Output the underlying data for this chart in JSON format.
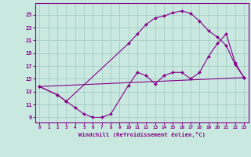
{
  "xlabel": "Windchill (Refroidissement éolien,°C)",
  "bg_color": "#c8e8e0",
  "grid_color": "#a0c8c0",
  "line_color": "#880088",
  "xlim": [
    -0.5,
    23.5
  ],
  "ylim": [
    8.2,
    26.8
  ],
  "xticks": [
    0,
    1,
    2,
    3,
    4,
    5,
    6,
    7,
    8,
    9,
    10,
    11,
    12,
    13,
    14,
    15,
    16,
    17,
    18,
    19,
    20,
    21,
    22,
    23
  ],
  "yticks": [
    9,
    11,
    13,
    15,
    17,
    19,
    21,
    23,
    25
  ],
  "line1_x": [
    0,
    23
  ],
  "line1_y": [
    13.8,
    15.2
  ],
  "line2_x": [
    0,
    2,
    3,
    4,
    5,
    6,
    7,
    8,
    10,
    11,
    12,
    13,
    14,
    15,
    16,
    17,
    18,
    19,
    20,
    21,
    22,
    23
  ],
  "line2_y": [
    13.8,
    12.5,
    11.5,
    10.5,
    9.5,
    9.0,
    9.0,
    9.5,
    14.0,
    16.0,
    15.5,
    14.2,
    15.5,
    16.0,
    16.0,
    15.0,
    16.0,
    18.5,
    20.5,
    22.0,
    17.5,
    15.2
  ],
  "line3_x": [
    0,
    2,
    3,
    10,
    11,
    12,
    13,
    14,
    15,
    16,
    17,
    18,
    19,
    20,
    21,
    22,
    23
  ],
  "line3_y": [
    13.8,
    12.5,
    11.5,
    20.5,
    22.0,
    23.5,
    24.5,
    24.8,
    25.3,
    25.6,
    25.2,
    24.0,
    22.5,
    21.5,
    20.2,
    17.2,
    15.2
  ]
}
